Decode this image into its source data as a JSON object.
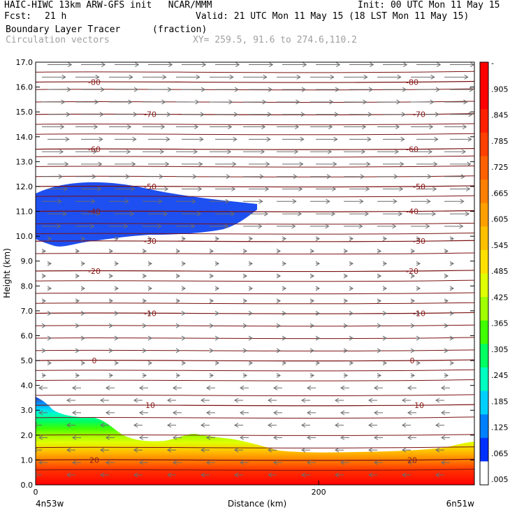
{
  "header": {
    "title": "HAIC-HIWC 13km ARW-GFS init   NCAR/MMM",
    "init": "Init: 00 UTC Mon 11 May 15",
    "fcst_label": "Fcst:",
    "fcst_value": "21 h",
    "valid": "Valid: 21 UTC Mon 11 May 15 (18 LST Mon 11 May 15)",
    "field": "Boundary Layer Tracer",
    "units": "(fraction)",
    "overlay": "Circulation vectors",
    "xy": "XY= 259.5, 91.6 to 274.6,110.2"
  },
  "chart_data": {
    "type": "heatmap",
    "title": "Boundary Layer Tracer",
    "ylabel": "Height (km)",
    "xlabel": "Distance (km)",
    "ylim": [
      0,
      17
    ],
    "xlim": [
      0,
      310
    ],
    "y_ticks": [
      "0.0",
      "1.0",
      "2.0",
      "3.0",
      "4.0",
      "5.0",
      "6.0",
      "7.0",
      "8.0",
      "9.0",
      "10.0",
      "11.0",
      "12.0",
      "13.0",
      "14.0",
      "15.0",
      "16.0",
      "17.0"
    ],
    "x_ticks": [
      "0",
      "200"
    ],
    "x_endpoints": {
      "left": "4n53w",
      "right": "6n51w"
    },
    "colorbar_labels": [
      "-",
      ".905",
      ".845",
      ".785",
      ".725",
      ".665",
      ".605",
      ".545",
      ".485",
      ".425",
      ".365",
      ".305",
      ".245",
      ".185",
      ".125",
      ".065",
      ".005"
    ],
    "colorbar_colors": [
      "#ff0000",
      "#ff0000",
      "#ff2000",
      "#ff4000",
      "#ff6000",
      "#ff8000",
      "#ffa000",
      "#ffc000",
      "#ffe000",
      "#e0ff00",
      "#a0ff00",
      "#40ff00",
      "#00ff60",
      "#00ffc0",
      "#00d0ff",
      "#0080ff",
      "#0030ff",
      "#ffffff"
    ],
    "temperature_contours": [
      {
        "label": "-80",
        "height_km": 16.2
      },
      {
        "label": "-70",
        "height_km": 14.9
      },
      {
        "label": "-60",
        "height_km": 13.5
      },
      {
        "label": "-50",
        "height_km": 12.0
      },
      {
        "label": "-40",
        "height_km": 11.0
      },
      {
        "label": "-30",
        "height_km": 9.8
      },
      {
        "label": "-20",
        "height_km": 8.6
      },
      {
        "label": "-10",
        "height_km": 6.9
      },
      {
        "label": "0",
        "height_km": 5.0
      },
      {
        "label": "10",
        "height_km": 3.2
      },
      {
        "label": "20",
        "height_km": 1.0
      }
    ],
    "grid": false
  }
}
